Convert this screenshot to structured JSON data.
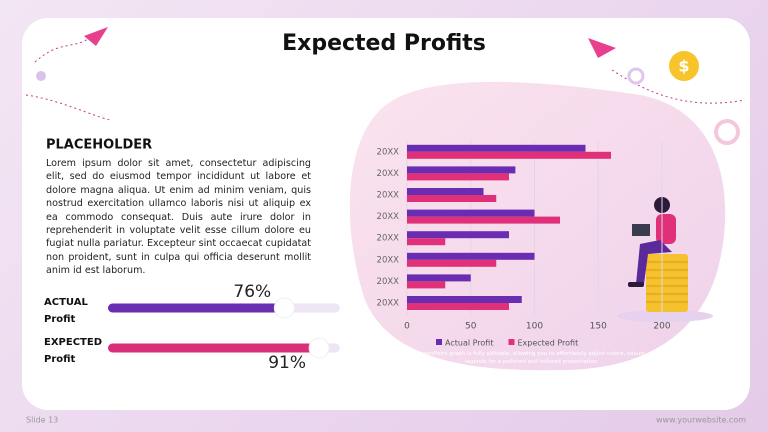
{
  "title": "Expected Profits",
  "section": {
    "heading": "PLACEHOLDER",
    "body": "Lorem ipsum dolor sit amet, consectetur adipiscing elit, sed do eiusmod tempor incididunt ut labore et dolore magna aliqua. Ut enim ad minim veniam, quis nostrud exercitation ullamco laboris nisi ut aliquip ex ea commodo consequat. Duis aute irure dolor in reprehenderit in voluptate velit esse cillum dolore eu fugiat nulla pariatur. Excepteur sint occaecat cupidatat non proident, sunt in culpa qui officia deserunt mollit anim id est laborum."
  },
  "progress": {
    "xlim": [
      0,
      100
    ],
    "items": [
      {
        "label": "ACTUAL",
        "sublabel": "Profit",
        "value": 76,
        "value_label": "76%",
        "color": "#6a2cb0"
      },
      {
        "label": "EXPECTED",
        "sublabel": "Profit",
        "value": 91,
        "value_label": "91%",
        "color": "#d92e7a"
      }
    ]
  },
  "chart_data": {
    "type": "hbar",
    "categories": [
      "20XX",
      "20XX",
      "20XX",
      "20XX",
      "20XX",
      "20XX",
      "20XX",
      "20XX"
    ],
    "series": [
      {
        "name": "Actual Profit",
        "color": "#6a2cb0",
        "values": [
          140,
          85,
          60,
          100,
          80,
          100,
          50,
          90
        ]
      },
      {
        "name": "Expected Profit",
        "color": "#e0307a",
        "values": [
          160,
          80,
          70,
          120,
          30,
          70,
          30,
          80
        ]
      }
    ],
    "xlim": [
      0,
      200
    ],
    "xticks": [
      0,
      50,
      100,
      150,
      200
    ],
    "grid": true,
    "legend": "bottom",
    "caption": "The PowerPoint graph is fully editable, allowing you to effortlessly adjust colors, values, and legends for a polished and tailored presentation."
  },
  "footer": {
    "slide": "Slide 13",
    "website": "www.yourwebsite.com"
  }
}
